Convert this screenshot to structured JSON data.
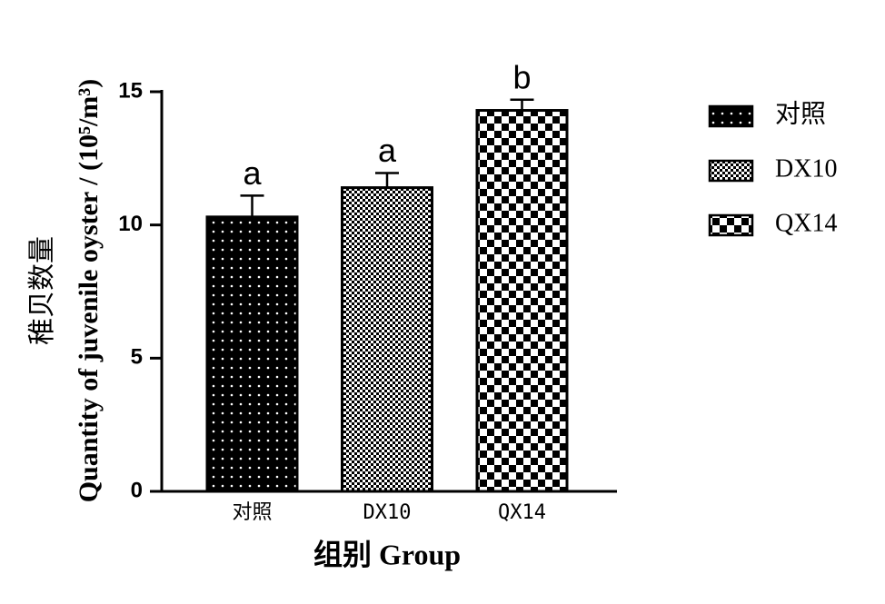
{
  "chart_data": {
    "type": "bar",
    "y_label_cn": "稚贝数量",
    "y_label": "Quantity of juvenile oyster / (10⁵/m³)",
    "x_label": "组别  Group",
    "categories": [
      "对照",
      "DX10",
      "QX14"
    ],
    "values": [
      10.3,
      11.4,
      14.3
    ],
    "errors": [
      0.8,
      0.55,
      0.4
    ],
    "significance": [
      "a",
      "a",
      "b"
    ],
    "ylim": [
      0,
      15
    ],
    "yticks": [
      0,
      5,
      10,
      15
    ],
    "color": "#000000"
  }
}
